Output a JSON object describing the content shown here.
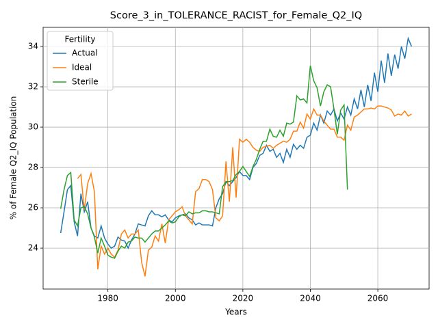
{
  "chart_data": {
    "type": "line",
    "title": "Score_3_in_TOLERANCE_RACIST_for_Female_Q2_IQ",
    "xlabel": "Years",
    "ylabel": "% of Female Q2_IQ Population",
    "x": [
      1966,
      1967,
      1968,
      1969,
      1970,
      1971,
      1972,
      1973,
      1974,
      1975,
      1976,
      1977,
      1978,
      1979,
      1980,
      1981,
      1982,
      1983,
      1984,
      1985,
      1986,
      1987,
      1988,
      1989,
      1990,
      1991,
      1992,
      1993,
      1994,
      1995,
      1996,
      1997,
      1998,
      1999,
      2000,
      2001,
      2002,
      2003,
      2004,
      2005,
      2006,
      2007,
      2008,
      2009,
      2010,
      2011,
      2012,
      2013,
      2014,
      2015,
      2016,
      2017,
      2018,
      2019,
      2020,
      2021,
      2022,
      2023,
      2024,
      2025,
      2026,
      2027,
      2028,
      2029,
      2030,
      2031,
      2032,
      2033,
      2034,
      2035,
      2036,
      2037,
      2038,
      2039,
      2040,
      2041,
      2042,
      2043,
      2044,
      2045,
      2046,
      2047,
      2048,
      2049,
      2050,
      2051,
      2052,
      2053,
      2054,
      2055,
      2056,
      2057,
      2058,
      2059,
      2060,
      2061,
      2062,
      2063,
      2064,
      2065,
      2066,
      2067,
      2068,
      2069,
      2070
    ],
    "series": [
      {
        "name": "Actual",
        "color": "#1f77b4",
        "values": [
          24.75,
          25.8,
          26.9,
          27.1,
          25.3,
          24.6,
          26.7,
          25.8,
          26.3,
          25.0,
          24.6,
          24.5,
          25.1,
          24.5,
          24.2,
          24.0,
          24.1,
          24.55,
          24.4,
          24.35,
          24.0,
          24.4,
          24.7,
          25.2,
          25.15,
          25.1,
          25.6,
          25.85,
          25.65,
          25.65,
          25.55,
          25.65,
          25.4,
          25.3,
          25.5,
          25.6,
          25.65,
          25.7,
          25.5,
          25.4,
          25.15,
          25.25,
          25.15,
          25.15,
          25.15,
          25.1,
          26.0,
          26.45,
          26.7,
          27.3,
          27.1,
          27.3,
          27.5,
          27.8,
          27.6,
          27.6,
          27.4,
          28.0,
          28.2,
          28.6,
          28.7,
          29.1,
          28.8,
          28.9,
          28.5,
          28.7,
          28.25,
          28.9,
          28.5,
          29.15,
          28.9,
          29.1,
          28.95,
          29.5,
          29.6,
          30.2,
          29.85,
          30.6,
          30.2,
          30.8,
          30.6,
          30.9,
          30.3,
          30.7,
          30.4,
          31.0,
          30.6,
          31.4,
          30.9,
          31.85,
          31.0,
          32.1,
          31.3,
          32.7,
          31.75,
          33.3,
          32.2,
          33.65,
          32.55,
          33.6,
          32.9,
          34.0,
          33.4,
          34.4,
          34.0
        ]
      },
      {
        "name": "Ideal",
        "color": "#ff7f0e",
        "values": [
          null,
          null,
          null,
          null,
          null,
          27.45,
          27.65,
          25.9,
          27.2,
          27.7,
          26.8,
          22.95,
          24.1,
          23.7,
          24.0,
          23.7,
          23.55,
          23.9,
          24.7,
          24.9,
          24.5,
          24.7,
          24.7,
          24.9,
          23.3,
          22.6,
          23.9,
          24.05,
          24.6,
          24.35,
          25.2,
          24.25,
          25.4,
          25.6,
          25.8,
          25.9,
          26.05,
          25.6,
          25.4,
          25.2,
          26.8,
          26.95,
          27.4,
          27.4,
          27.3,
          26.9,
          25.5,
          25.35,
          25.6,
          28.3,
          26.3,
          29.0,
          26.5,
          29.4,
          29.25,
          29.4,
          29.25,
          29.0,
          28.85,
          28.8,
          29.0,
          29.05,
          29.1,
          28.95,
          29.1,
          29.2,
          29.3,
          29.25,
          29.4,
          29.8,
          29.8,
          30.25,
          29.95,
          30.65,
          30.4,
          30.9,
          30.6,
          30.6,
          30.3,
          30.1,
          29.9,
          29.9,
          29.5,
          29.5,
          29.35,
          30.1,
          29.85,
          30.5,
          30.6,
          30.75,
          30.9,
          30.9,
          30.95,
          30.9,
          31.05,
          31.05,
          31.0,
          30.95,
          30.85,
          30.55,
          30.65,
          30.6,
          30.8,
          30.55,
          30.65
        ]
      },
      {
        "name": "Sterile",
        "color": "#2ca02c",
        "values": [
          25.95,
          26.9,
          27.6,
          27.75,
          25.4,
          25.1,
          26.0,
          26.05,
          25.7,
          25.0,
          24.55,
          23.75,
          24.5,
          24.1,
          23.65,
          23.55,
          23.5,
          23.85,
          24.1,
          24.0,
          24.3,
          24.35,
          24.55,
          24.5,
          24.5,
          24.3,
          24.5,
          24.7,
          24.85,
          24.85,
          25.0,
          25.15,
          25.35,
          25.25,
          25.3,
          25.55,
          25.65,
          25.6,
          25.8,
          25.7,
          25.75,
          25.75,
          25.85,
          25.85,
          25.8,
          25.8,
          25.75,
          25.7,
          27.05,
          27.3,
          27.3,
          27.35,
          27.65,
          27.8,
          28.05,
          27.8,
          27.55,
          28.05,
          28.4,
          28.9,
          29.3,
          29.3,
          29.9,
          29.55,
          29.5,
          29.85,
          29.55,
          30.2,
          30.15,
          30.25,
          31.55,
          31.35,
          31.4,
          31.2,
          33.05,
          32.3,
          31.95,
          31.05,
          31.75,
          32.1,
          32.0,
          30.9,
          29.65,
          30.85,
          31.1,
          26.9,
          null,
          null,
          null,
          null,
          null,
          null,
          null,
          null,
          null,
          null,
          null,
          null,
          null,
          null,
          null,
          null,
          null,
          null,
          null
        ]
      }
    ],
    "xlim": [
      1960.8,
      2075.2
    ],
    "xticks": [
      1980,
      2000,
      2020,
      2040,
      2060
    ],
    "ylim": [
      21.97,
      34.95
    ],
    "yticks": [
      24,
      26,
      28,
      30,
      32,
      34
    ],
    "grid": true,
    "legend_title": "Fertility",
    "legend_loc": "upper left"
  }
}
